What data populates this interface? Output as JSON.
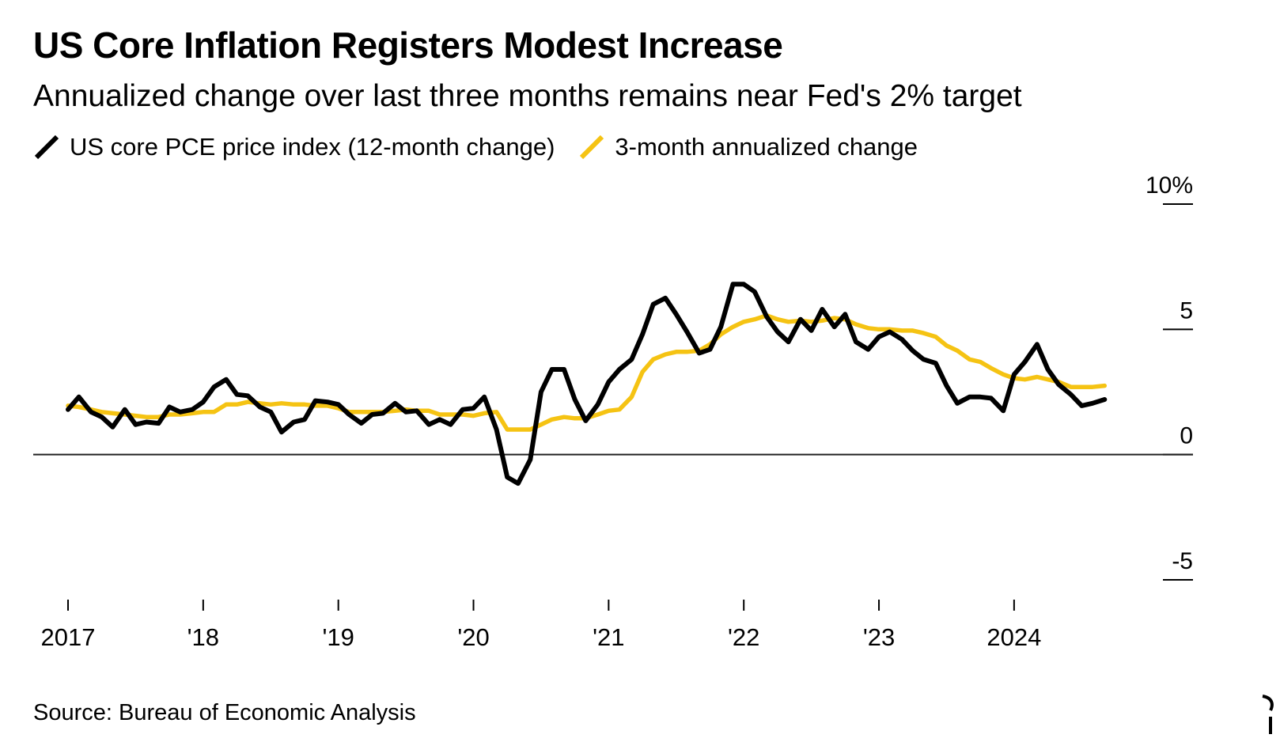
{
  "chart_data": {
    "type": "line",
    "title": "US Core Inflation Registers Modest Increase",
    "subtitle": "Annualized change over last three months remains near Fed's 2% target",
    "source": "Source: Bureau of Economic Analysis",
    "xlabel": "",
    "ylabel": "",
    "ylim": [
      -5,
      10
    ],
    "xlim": [
      2017.0,
      2024.75
    ],
    "y_ticks": [
      {
        "value": 10,
        "label": "10%"
      },
      {
        "value": 5,
        "label": "5"
      },
      {
        "value": 0,
        "label": "0"
      },
      {
        "value": -5,
        "label": "-5"
      }
    ],
    "x_ticks": [
      {
        "value": 2017,
        "label": "2017"
      },
      {
        "value": 2018,
        "label": "'18"
      },
      {
        "value": 2019,
        "label": "'19"
      },
      {
        "value": 2020,
        "label": "'20"
      },
      {
        "value": 2021,
        "label": "'21"
      },
      {
        "value": 2022,
        "label": "'22"
      },
      {
        "value": 2023,
        "label": "'23"
      },
      {
        "value": 2024,
        "label": "2024"
      }
    ],
    "zero_line": true,
    "series": [
      {
        "name": "US core PCE price index (12-month change)",
        "color": "#000000",
        "x": [
          2017.0,
          2017.08,
          2017.17,
          2017.25,
          2017.33,
          2017.42,
          2017.5,
          2017.58,
          2017.67,
          2017.75,
          2017.83,
          2017.92,
          2018.0,
          2018.08,
          2018.17,
          2018.25,
          2018.33,
          2018.42,
          2018.5,
          2018.58,
          2018.67,
          2018.75,
          2018.83,
          2018.92,
          2019.0,
          2019.08,
          2019.17,
          2019.25,
          2019.33,
          2019.42,
          2019.5,
          2019.58,
          2019.67,
          2019.75,
          2019.83,
          2019.92,
          2020.0,
          2020.08,
          2020.17,
          2020.25,
          2020.33,
          2020.42,
          2020.5,
          2020.58,
          2020.67,
          2020.75,
          2020.83,
          2020.92,
          2021.0,
          2021.08,
          2021.17,
          2021.25,
          2021.33,
          2021.42,
          2021.5,
          2021.58,
          2021.67,
          2021.75,
          2021.83,
          2021.92,
          2022.0,
          2022.08,
          2022.17,
          2022.25,
          2022.33,
          2022.42,
          2022.5,
          2022.58,
          2022.67,
          2022.75,
          2022.83,
          2022.92,
          2023.0,
          2023.08,
          2023.17,
          2023.25,
          2023.33,
          2023.42,
          2023.5,
          2023.58,
          2023.67,
          2023.75,
          2023.83,
          2023.92,
          2024.0,
          2024.08,
          2024.17,
          2024.25,
          2024.33,
          2024.42,
          2024.5,
          2024.58,
          2024.67
        ],
        "values": [
          1.8,
          2.3,
          1.7,
          1.5,
          1.1,
          1.8,
          1.2,
          1.3,
          1.25,
          1.9,
          1.7,
          1.8,
          2.1,
          2.7,
          3.0,
          2.4,
          2.35,
          1.9,
          1.7,
          0.9,
          1.3,
          1.4,
          2.15,
          2.1,
          2.0,
          1.6,
          1.25,
          1.6,
          1.65,
          2.05,
          1.7,
          1.75,
          1.2,
          1.4,
          1.2,
          1.8,
          1.85,
          2.3,
          1.0,
          -0.9,
          -1.15,
          -0.2,
          2.5,
          3.4,
          3.4,
          2.2,
          1.35,
          2.0,
          2.9,
          3.4,
          3.8,
          4.8,
          6.0,
          6.25,
          5.6,
          4.9,
          4.05,
          4.2,
          5.1,
          6.8,
          6.8,
          6.5,
          5.5,
          4.9,
          4.5,
          5.4,
          4.95,
          5.8,
          5.1,
          5.6,
          4.5,
          4.2,
          4.7,
          4.9,
          4.6,
          4.15,
          3.8,
          3.65,
          2.75,
          2.05,
          2.3,
          2.3,
          2.25,
          1.75,
          3.2,
          3.7,
          4.4,
          3.4,
          2.8,
          2.4,
          1.95,
          2.05,
          2.2
        ]
      },
      {
        "name": "3-month annualized change",
        "color": "#f5c313",
        "x": [
          2017.0,
          2017.08,
          2017.17,
          2017.25,
          2017.33,
          2017.42,
          2017.5,
          2017.58,
          2017.67,
          2017.75,
          2017.83,
          2017.92,
          2018.0,
          2018.08,
          2018.17,
          2018.25,
          2018.33,
          2018.42,
          2018.5,
          2018.58,
          2018.67,
          2018.75,
          2018.83,
          2018.92,
          2019.0,
          2019.08,
          2019.17,
          2019.25,
          2019.33,
          2019.42,
          2019.5,
          2019.58,
          2019.67,
          2019.75,
          2019.83,
          2019.92,
          2020.0,
          2020.08,
          2020.17,
          2020.25,
          2020.33,
          2020.42,
          2020.5,
          2020.58,
          2020.67,
          2020.75,
          2020.83,
          2020.92,
          2021.0,
          2021.08,
          2021.17,
          2021.25,
          2021.33,
          2021.42,
          2021.5,
          2021.58,
          2021.67,
          2021.75,
          2021.83,
          2021.92,
          2022.0,
          2022.08,
          2022.17,
          2022.25,
          2022.33,
          2022.42,
          2022.5,
          2022.58,
          2022.67,
          2022.75,
          2022.83,
          2022.92,
          2023.0,
          2023.08,
          2023.17,
          2023.25,
          2023.33,
          2023.42,
          2023.5,
          2023.58,
          2023.67,
          2023.75,
          2023.83,
          2023.92,
          2024.0,
          2024.08,
          2024.17,
          2024.25,
          2024.33,
          2024.42,
          2024.5,
          2024.58,
          2024.67
        ],
        "values": [
          1.95,
          1.9,
          1.8,
          1.7,
          1.65,
          1.6,
          1.55,
          1.5,
          1.5,
          1.6,
          1.6,
          1.65,
          1.7,
          1.7,
          2.0,
          2.0,
          2.1,
          2.05,
          2.0,
          2.05,
          2.0,
          2.0,
          1.95,
          1.95,
          1.85,
          1.7,
          1.7,
          1.7,
          1.7,
          1.75,
          1.8,
          1.75,
          1.75,
          1.6,
          1.6,
          1.6,
          1.55,
          1.65,
          1.7,
          1.0,
          1.0,
          1.0,
          1.2,
          1.4,
          1.5,
          1.45,
          1.45,
          1.6,
          1.75,
          1.8,
          2.3,
          3.3,
          3.8,
          4.0,
          4.1,
          4.1,
          4.15,
          4.4,
          4.8,
          5.1,
          5.3,
          5.4,
          5.55,
          5.4,
          5.3,
          5.35,
          5.3,
          5.35,
          5.45,
          5.4,
          5.2,
          5.05,
          5.0,
          5.0,
          4.95,
          4.95,
          4.85,
          4.7,
          4.35,
          4.15,
          3.8,
          3.7,
          3.45,
          3.2,
          3.05,
          3.0,
          3.1,
          3.0,
          2.9,
          2.7,
          2.7,
          2.7,
          2.75
        ]
      }
    ]
  }
}
